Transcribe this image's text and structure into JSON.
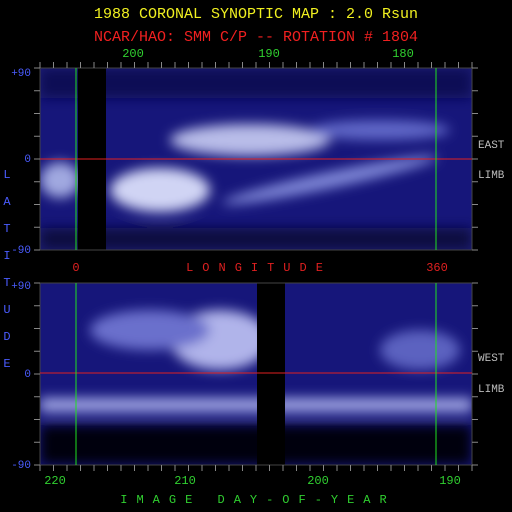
{
  "title": "1988 CORONAL SYNOPTIC MAP : 2.0 Rsun",
  "subtitle": "NCAR/HAO: SMM C/P -- ROTATION # 1804",
  "top_axis": {
    "ticks": [
      "200",
      "190",
      "180"
    ]
  },
  "upper_panel": {
    "lat_labels": [
      "+90",
      "0",
      "-90"
    ],
    "limb_labels": [
      "EAST",
      "LIMB"
    ]
  },
  "longitude_axis": {
    "start": "0",
    "label": "LONGITUDE",
    "end": "360"
  },
  "lower_panel": {
    "lat_labels": [
      "+90",
      "0",
      "-90"
    ],
    "limb_labels": [
      "WEST",
      "LIMB"
    ]
  },
  "latitude_label": "LATITUDE",
  "bottom_axis": {
    "ticks": [
      "220",
      "210",
      "200",
      "190"
    ],
    "label": "IMAGE DAY-OF-YEAR"
  }
}
